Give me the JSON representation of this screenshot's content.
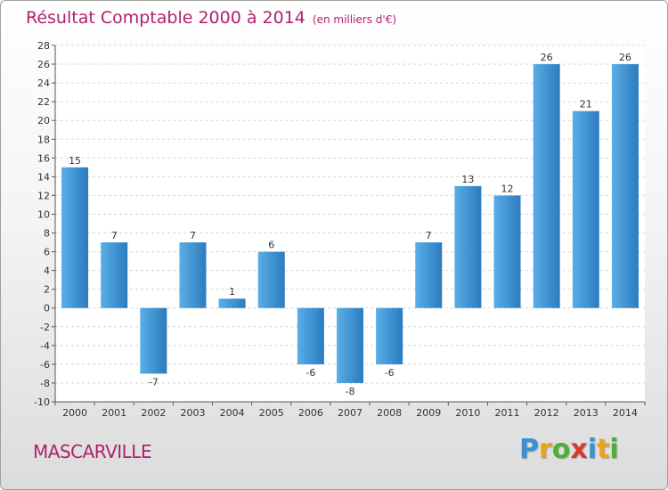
{
  "header": {
    "title": "Résultat Comptable 2000 à 2014",
    "unit": "(en milliers d'€)"
  },
  "footer": {
    "commune": "MASCARVILLE",
    "logo": "Proxiti"
  },
  "colors": {
    "title": "#b0206e",
    "bar_light": "#5aaee6",
    "bar_dark": "#2b7bbf",
    "logo_letters": [
      "#3b8fd4",
      "#e8a317",
      "#4fae3a",
      "#d93a2b",
      "#3b8fd4",
      "#e8a317",
      "#4fae3a"
    ]
  },
  "chart_data": {
    "type": "bar",
    "categories": [
      "2000",
      "2001",
      "2002",
      "2003",
      "2004",
      "2005",
      "2006",
      "2007",
      "2008",
      "2009",
      "2010",
      "2011",
      "2012",
      "2013",
      "2014"
    ],
    "values": [
      15,
      7,
      -7,
      7,
      1,
      6,
      -6,
      -8,
      -6,
      7,
      13,
      12,
      26,
      21,
      26
    ],
    "data_labels": [
      "15",
      "7",
      "-7",
      "7",
      "1",
      "6",
      "-6",
      "-8",
      "-6",
      "7",
      "13",
      "12",
      "26",
      "21",
      "26"
    ],
    "ylim": [
      -10,
      28
    ],
    "yticks": [
      -10,
      -8,
      -6,
      -4,
      -2,
      0,
      2,
      4,
      6,
      8,
      10,
      12,
      14,
      16,
      18,
      20,
      22,
      24,
      26,
      28
    ],
    "grid": true,
    "legend": "none"
  }
}
